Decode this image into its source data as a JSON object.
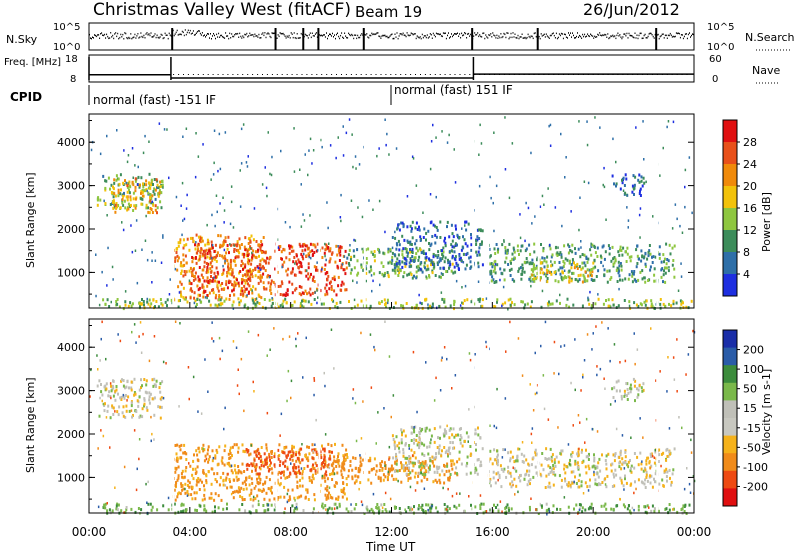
{
  "header": {
    "station": "Christmas Valley West (fitACF)",
    "beam": "Beam 19",
    "date": "26/Jun/2012"
  },
  "colors": {
    "power_scale": [
      "#1e2fe0",
      "#2e6fa8",
      "#3c8c5a",
      "#8ec63f",
      "#f2c20a",
      "#f08a0a",
      "#e8501a",
      "#e00f10"
    ],
    "velocity_scale": [
      "#e00f10",
      "#ee4a12",
      "#f08b1a",
      "#f5b21b",
      "#c8c8c0",
      "#c0c0b8",
      "#7ab84a",
      "#3c8c3c",
      "#2a5ca8",
      "#1a2ea8"
    ]
  },
  "chart_data": [
    {
      "type": "line",
      "panel": "sky-noise",
      "ylabel_left": "N.Sky",
      "ylabel_right": "N.Search",
      "left_ticks": [
        "10^5",
        "10^0"
      ],
      "right_ticks": [
        "10^5",
        "10^0"
      ],
      "yscale": "log",
      "xlim": [
        "00:00",
        "00:00"
      ]
    },
    {
      "type": "line",
      "panel": "frequency",
      "ylabel_left": "Freq. [MHz]",
      "ylabel_right": "Nave",
      "left_ticks": [
        "18",
        "8"
      ],
      "right_ticks": [
        "60",
        "0"
      ],
      "step_segments_mhz": [
        {
          "start": "00:00",
          "end": "03:15",
          "freq": 10.7
        },
        {
          "start": "03:15",
          "end": "15:15",
          "freq": 9.5
        },
        {
          "start": "15:15",
          "end": "00:00",
          "freq": 10.9
        }
      ]
    },
    {
      "type": "table",
      "panel": "cpid",
      "label": "CPID",
      "segments": [
        {
          "start": "00:00",
          "end": "11:45",
          "text": "normal (fast) -151 IF"
        },
        {
          "start": "11:45",
          "end": "00:00",
          "text": "normal (fast) 151 IF"
        }
      ]
    },
    {
      "type": "heatmap",
      "panel": "power",
      "xlabel": "",
      "ylabel": "Slant Range [km]",
      "yticks": [
        1000,
        2000,
        3000,
        4000
      ],
      "ylim": [
        180,
        4650
      ],
      "x_hours": [
        0,
        24
      ],
      "colorbar": {
        "label": "Power [dB]",
        "ticks": [
          4,
          8,
          12,
          16,
          20,
          24,
          28
        ],
        "range": [
          0,
          30
        ]
      },
      "scatter_bands": [
        {
          "t0": 0.3,
          "t1": 2.9,
          "r0": 2500,
          "r1": 3300,
          "value": 12
        },
        {
          "t0": 0.9,
          "t1": 2.8,
          "r0": 2400,
          "r1": 3200,
          "value": 20
        },
        {
          "t0": 3.3,
          "t1": 7.0,
          "r0": 400,
          "r1": 1900,
          "value": 22
        },
        {
          "t0": 4.0,
          "t1": 10.2,
          "r0": 500,
          "r1": 1700,
          "value": 27
        },
        {
          "t0": 10.2,
          "t1": 14.5,
          "r0": 900,
          "r1": 1600,
          "value": 12
        },
        {
          "t0": 12.0,
          "t1": 15.6,
          "r0": 1100,
          "r1": 2200,
          "value": 6
        },
        {
          "t0": 15.8,
          "t1": 23.2,
          "r0": 800,
          "r1": 1700,
          "value": 10
        },
        {
          "t0": 17.5,
          "t1": 20.0,
          "r0": 800,
          "r1": 1300,
          "value": 17
        },
        {
          "t0": 0.5,
          "t1": 23.9,
          "r0": 200,
          "r1": 420,
          "value": 14
        },
        {
          "t0": 20.7,
          "t1": 22.0,
          "r0": 2800,
          "r1": 3300,
          "value": 6
        }
      ],
      "x": []
    },
    {
      "type": "heatmap",
      "panel": "velocity",
      "xlabel": "Time UT",
      "ylabel": "Slant Range [km]",
      "xticks": [
        "00:00",
        "04:00",
        "08:00",
        "12:00",
        "16:00",
        "20:00",
        "00:00"
      ],
      "yticks": [
        1000,
        2000,
        3000,
        4000
      ],
      "ylim": [
        180,
        4650
      ],
      "x_hours": [
        0,
        24
      ],
      "colorbar": {
        "label": "Velocity [m s-1]",
        "ticks": [
          200,
          100,
          50,
          15,
          -15,
          -50,
          -100,
          -200
        ],
        "range": [
          -250,
          250
        ]
      },
      "scatter_bands": [
        {
          "t0": 0.3,
          "t1": 2.9,
          "r0": 2400,
          "r1": 3300,
          "value": -5
        },
        {
          "t0": 3.3,
          "t1": 10.2,
          "r0": 500,
          "r1": 1800,
          "value": -60
        },
        {
          "t0": 6.2,
          "t1": 9.6,
          "r0": 1100,
          "r1": 1700,
          "value": -150
        },
        {
          "t0": 9.6,
          "t1": 14.6,
          "r0": 900,
          "r1": 1500,
          "value": -70
        },
        {
          "t0": 12.0,
          "t1": 15.6,
          "r0": 1100,
          "r1": 2200,
          "value": 0
        },
        {
          "t0": 15.8,
          "t1": 23.2,
          "r0": 800,
          "r1": 1700,
          "value": -5
        },
        {
          "t0": 0.5,
          "t1": 23.9,
          "r0": 200,
          "r1": 420,
          "value": 40
        },
        {
          "t0": 20.7,
          "t1": 22.0,
          "r0": 2800,
          "r1": 3300,
          "value": 0
        }
      ],
      "x": []
    }
  ]
}
